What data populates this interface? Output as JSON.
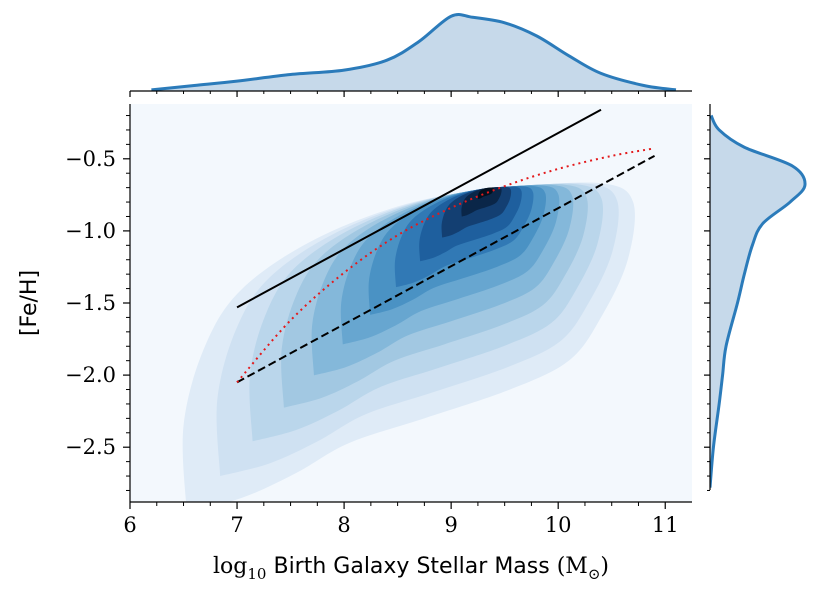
{
  "chart_data": {
    "type": "kde-joint",
    "xlabel_parts": {
      "log": "log",
      "sub": "10",
      "text": " Birth Galaxy Stellar Mass ",
      "unit_open": "(M",
      "unit_sym": "⊙",
      "unit_close": ")"
    },
    "ylabel": "[Fe/H]",
    "xlim": [
      6.0,
      11.25
    ],
    "ylim": [
      -2.88,
      -0.12
    ],
    "xticks": [
      6,
      7,
      8,
      9,
      10,
      11
    ],
    "xtick_labels": [
      "6",
      "7",
      "8",
      "9",
      "10",
      "11"
    ],
    "yticks": [
      -2.5,
      -2.0,
      -1.5,
      -1.0,
      -0.5
    ],
    "ytick_labels": [
      "−2.5",
      "−2.0",
      "−1.5",
      "−1.0",
      "−0.5"
    ],
    "density_peak": {
      "x": 9.35,
      "y": -0.7
    },
    "lines": [
      {
        "name": "solid-relation",
        "style": "solid",
        "color": "#000000",
        "points": [
          [
            7.0,
            -1.53
          ],
          [
            10.4,
            -0.16
          ]
        ]
      },
      {
        "name": "dashed-relation",
        "style": "dashed",
        "color": "#000000",
        "points": [
          [
            7.0,
            -2.05
          ],
          [
            10.9,
            -0.48
          ]
        ]
      },
      {
        "name": "dotted-quadratic",
        "style": "dotted",
        "color": "#e31a1c",
        "points": [
          [
            7.0,
            -2.05
          ],
          [
            7.5,
            -1.62
          ],
          [
            8.0,
            -1.29
          ],
          [
            8.5,
            -1.03
          ],
          [
            9.0,
            -0.84
          ],
          [
            9.5,
            -0.69
          ],
          [
            10.0,
            -0.57
          ],
          [
            10.5,
            -0.48
          ],
          [
            10.88,
            -0.43
          ]
        ]
      }
    ],
    "marginal_x": {
      "points": [
        [
          6.2,
          0.01
        ],
        [
          6.6,
          0.05
        ],
        [
          7.0,
          0.09
        ],
        [
          7.5,
          0.15
        ],
        [
          8.0,
          0.19
        ],
        [
          8.4,
          0.28
        ],
        [
          8.7,
          0.45
        ],
        [
          9.0,
          0.68
        ],
        [
          9.2,
          0.67
        ],
        [
          9.5,
          0.62
        ],
        [
          9.8,
          0.5
        ],
        [
          10.1,
          0.32
        ],
        [
          10.4,
          0.16
        ],
        [
          10.8,
          0.05
        ],
        [
          11.1,
          0.01
        ]
      ]
    },
    "marginal_y": {
      "points": [
        [
          -2.78,
          0.0
        ],
        [
          -2.5,
          0.03
        ],
        [
          -2.2,
          0.08
        ],
        [
          -2.0,
          0.11
        ],
        [
          -1.8,
          0.14
        ],
        [
          -1.5,
          0.24
        ],
        [
          -1.3,
          0.3
        ],
        [
          -1.1,
          0.37
        ],
        [
          -0.95,
          0.46
        ],
        [
          -0.8,
          0.7
        ],
        [
          -0.68,
          0.83
        ],
        [
          -0.55,
          0.72
        ],
        [
          -0.42,
          0.3
        ],
        [
          -0.3,
          0.08
        ],
        [
          -0.2,
          0.01
        ]
      ]
    },
    "colors": {
      "background": "#f3f8fd",
      "marginal_line": "#2b7bba",
      "marginal_fill": "#c6d9ea"
    }
  }
}
